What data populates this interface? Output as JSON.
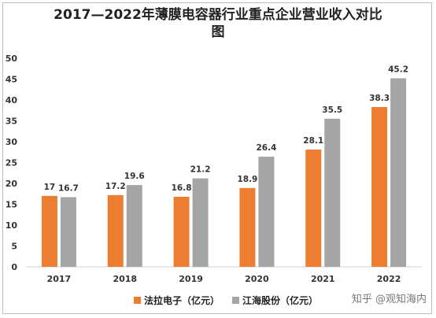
{
  "chart_data": {
    "type": "bar",
    "title_line1": "2017—2022年薄膜电容器行业重点企业营业收入对比",
    "title_line2": "图",
    "categories": [
      "2017",
      "2018",
      "2019",
      "2020",
      "2021",
      "2022"
    ],
    "series": [
      {
        "name": "法拉电子（亿元）",
        "values": [
          17,
          17.2,
          16.8,
          18.9,
          28.1,
          38.3
        ],
        "color": "#ed7d31"
      },
      {
        "name": "江海股份（亿元）",
        "values": [
          16.7,
          19.6,
          21.2,
          26.4,
          35.5,
          45.2
        ],
        "color": "#a5a5a5"
      }
    ],
    "ylim": [
      0,
      50
    ],
    "yticks": [
      0,
      5,
      10,
      15,
      20,
      25,
      30,
      35,
      40,
      45,
      50
    ],
    "grid": false,
    "legend_position": "bottom"
  },
  "watermark": "知乎 @观知海内"
}
